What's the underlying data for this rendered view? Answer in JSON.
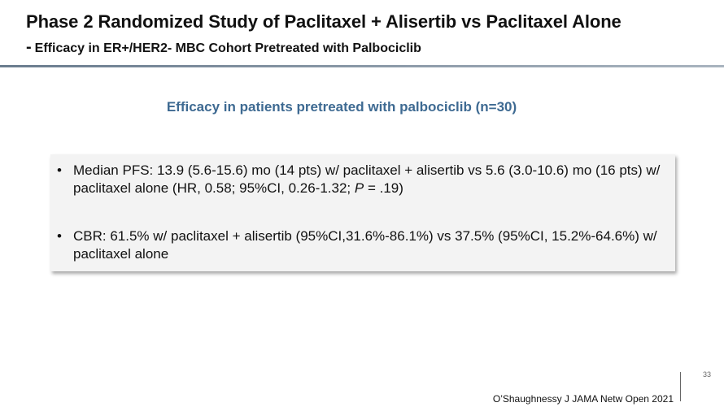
{
  "header": {
    "title": "Phase 2 Randomized Study of Paclitaxel + Alisertib vs Paclitaxel Alone",
    "subtitle_dash": "-",
    "subtitle": "Efficacy in ER+/HER2- MBC Cohort Pretreated with Palbociclib"
  },
  "body": {
    "heading": "Efficacy in patients pretreated with palbociclib (n=30)",
    "bullets": [
      [
        "Median PFS: 13.9 (5.6-15.6) mo (14 pts) w/ paclitaxel + alisertib vs 5.6 (3.0-10.6) mo (16 pts) w/ paclitaxel alone (HR, 0.58; 95%CI, 0.26-1.32; ",
        "P",
        " = .19)"
      ],
      [
        "CBR: 61.5% w/ paclitaxel + alisertib (95%CI,31.6%-86.1%) vs 37.5% (95%CI, 15.2%-64.6%) w/ paclitaxel alone"
      ]
    ]
  },
  "footer": {
    "citation": "O’Shaughnessy J JAMA Netw Open 2021",
    "page_number": 33
  }
}
